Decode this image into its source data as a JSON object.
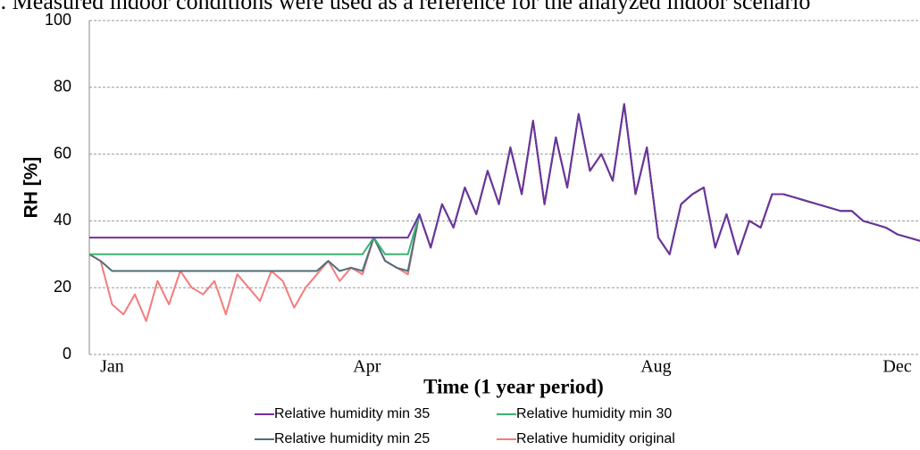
{
  "chart_data": {
    "type": "line",
    "caption": "). Measured indoor conditions were used as a reference for the analyzed indoor scenario",
    "ylabel": "RH [%]",
    "xlabel": "Time (1 year period)",
    "xlim": [
      0,
      365
    ],
    "xticks": [
      {
        "value": 10,
        "label": "Jan"
      },
      {
        "value": 122,
        "label": "Apr"
      },
      {
        "value": 249,
        "label": "Aug"
      },
      {
        "value": 355,
        "label": "Dec"
      }
    ],
    "ylim": [
      0,
      100
    ],
    "yticks": [
      0,
      20,
      40,
      60,
      80,
      100
    ],
    "grid": true,
    "x": [
      0,
      5,
      10,
      15,
      20,
      25,
      30,
      35,
      40,
      45,
      50,
      55,
      60,
      65,
      70,
      75,
      80,
      85,
      90,
      95,
      100,
      105,
      110,
      115,
      120,
      125,
      130,
      135,
      140,
      145,
      150,
      155,
      160,
      165,
      170,
      175,
      180,
      185,
      190,
      195,
      200,
      205,
      210,
      215,
      220,
      225,
      230,
      235,
      240,
      245,
      250,
      255,
      260,
      265,
      270,
      275,
      280,
      285,
      290,
      295,
      300,
      305,
      310,
      315,
      320,
      325,
      330,
      335,
      340,
      345,
      350,
      355,
      360,
      365
    ],
    "series": [
      {
        "name": "Relative humidity min 35",
        "color": "#7030a0",
        "values": [
          35,
          35,
          35,
          35,
          35,
          35,
          35,
          35,
          35,
          35,
          35,
          35,
          35,
          35,
          35,
          35,
          35,
          35,
          35,
          35,
          35,
          35,
          35,
          35,
          35,
          35,
          35,
          35,
          35,
          42,
          32,
          45,
          38,
          50,
          42,
          55,
          45,
          62,
          48,
          70,
          45,
          65,
          50,
          72,
          55,
          60,
          52,
          75,
          48,
          62,
          35,
          30,
          45,
          48,
          50,
          32,
          42,
          30,
          40,
          38,
          48,
          48,
          47,
          46,
          45,
          44,
          43,
          43,
          40,
          39,
          38,
          36,
          35,
          34
        ]
      },
      {
        "name": "Relative humidity min 30",
        "color": "#3cb371",
        "values": [
          30,
          30,
          30,
          30,
          30,
          30,
          30,
          30,
          30,
          30,
          30,
          30,
          30,
          30,
          30,
          30,
          30,
          30,
          30,
          30,
          30,
          30,
          30,
          30,
          30,
          35,
          30,
          30,
          30,
          42,
          32,
          45,
          38,
          50,
          42,
          55,
          45,
          62,
          48,
          70,
          45,
          65,
          50,
          72,
          55,
          60,
          52,
          75,
          48,
          62,
          35,
          30,
          45,
          48,
          50,
          32,
          42,
          30,
          40,
          38,
          48,
          48,
          47,
          46,
          45,
          44,
          43,
          43,
          40,
          39,
          38,
          36,
          35,
          34
        ]
      },
      {
        "name": "Relative humidity min 25",
        "color": "#4f6d7a",
        "values": [
          30,
          28,
          25,
          25,
          25,
          25,
          25,
          25,
          25,
          25,
          25,
          25,
          25,
          25,
          25,
          25,
          25,
          25,
          25,
          25,
          25,
          28,
          25,
          26,
          25,
          35,
          28,
          26,
          25,
          42,
          32,
          45,
          38,
          50,
          42,
          55,
          45,
          62,
          48,
          70,
          45,
          65,
          50,
          72,
          55,
          60,
          52,
          75,
          48,
          62,
          35,
          30,
          45,
          48,
          50,
          32,
          42,
          30,
          40,
          38,
          48,
          48,
          47,
          46,
          45,
          44,
          43,
          43,
          40,
          39,
          38,
          36,
          35,
          34
        ]
      },
      {
        "name": "Relative humidity original",
        "color": "#f47c7c",
        "values": [
          30,
          28,
          15,
          12,
          18,
          10,
          22,
          15,
          25,
          20,
          18,
          22,
          12,
          24,
          20,
          16,
          25,
          22,
          14,
          20,
          24,
          28,
          22,
          26,
          24,
          35,
          28,
          26,
          24,
          42,
          32,
          45,
          38,
          50,
          42,
          55,
          45,
          62,
          48,
          70,
          45,
          65,
          50,
          72,
          55,
          60,
          52,
          75,
          48,
          62,
          35,
          30,
          45,
          48,
          50,
          32,
          42,
          30,
          40,
          38,
          48,
          48,
          47,
          46,
          45,
          44,
          43,
          43,
          40,
          39,
          38,
          36,
          35,
          34
        ]
      }
    ]
  }
}
